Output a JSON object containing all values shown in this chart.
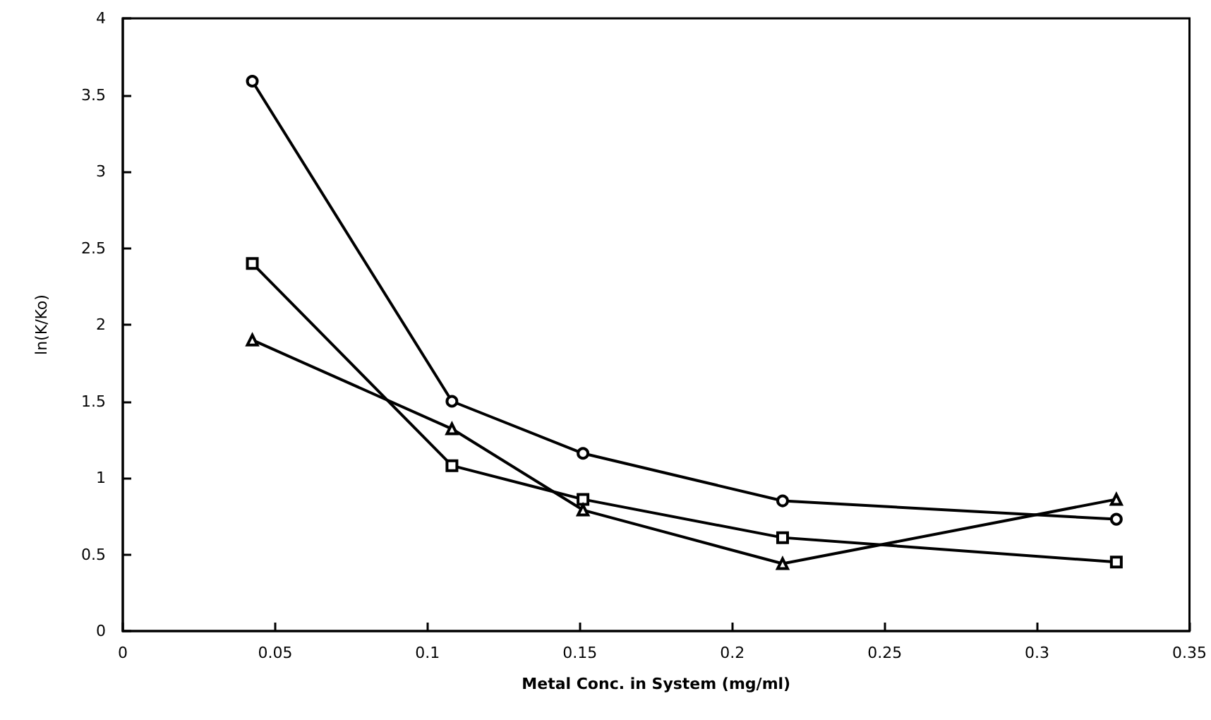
{
  "chart_data": {
    "type": "line",
    "xlabel": "Metal Conc. in System (mg/ml)",
    "ylabel": "ln(K/Ko)",
    "x": [
      0.0425,
      0.108,
      0.151,
      0.2165,
      0.326
    ],
    "series": [
      {
        "color": "#000000",
        "marker": "circle",
        "values": [
          3.59,
          1.5,
          1.16,
          0.85,
          0.73
        ]
      },
      {
        "color": "#000000",
        "marker": "square",
        "values": [
          2.4,
          1.08,
          0.86,
          0.61,
          0.45
        ]
      },
      {
        "color": "#000000",
        "marker": "triangle",
        "values": [
          1.9,
          1.32,
          0.79,
          0.44,
          0.86
        ]
      }
    ],
    "xlim": [
      0,
      0.35
    ],
    "xticks": [
      0,
      0.05,
      0.1,
      0.15,
      0.2,
      0.25,
      0.3,
      0.35
    ],
    "ylim": [
      0,
      4
    ],
    "yticks": [
      0,
      0.5,
      1,
      1.5,
      2,
      2.5,
      3,
      3.5,
      4
    ],
    "grid": false,
    "line_style": "solid"
  }
}
